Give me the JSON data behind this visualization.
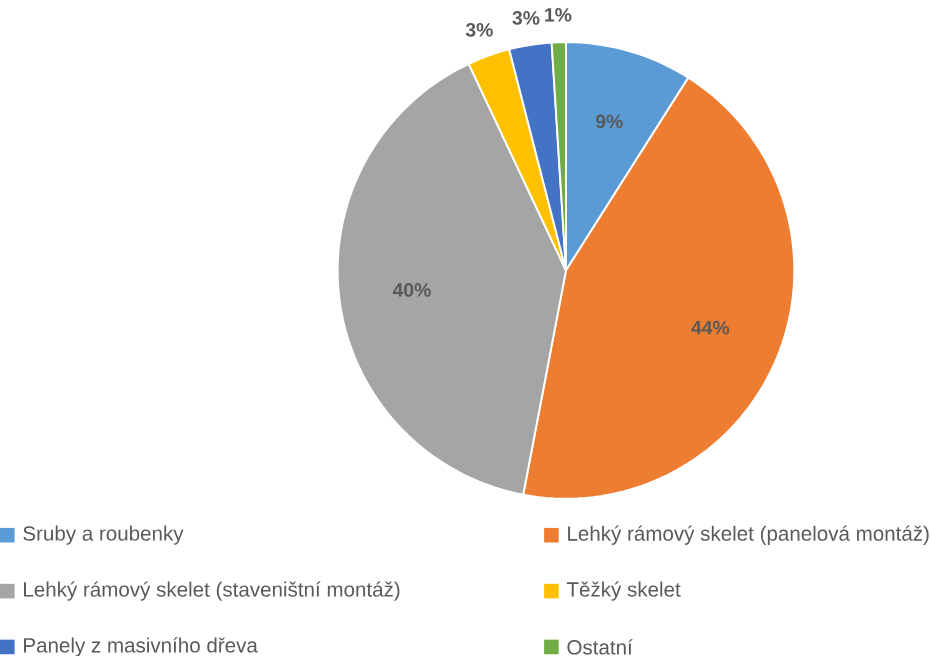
{
  "chart_data": {
    "type": "pie",
    "categories": [
      "Sruby a roubenky",
      "Lehký rámový skelet (panelová montáž)",
      "Lehký rámový skelet (staveništní montáž)",
      "Těžký skelet",
      "Panely z masivního dřeva",
      "Ostatní"
    ],
    "values": [
      9,
      44,
      40,
      3,
      3,
      1
    ],
    "value_labels": [
      "9%",
      "44%",
      "40%",
      "3%",
      "3%",
      "1%"
    ],
    "colors": [
      "#5b9bd5",
      "#ed7d31",
      "#a5a5a5",
      "#ffc000",
      "#4472c4",
      "#70ad47"
    ],
    "legend": "bottom"
  }
}
